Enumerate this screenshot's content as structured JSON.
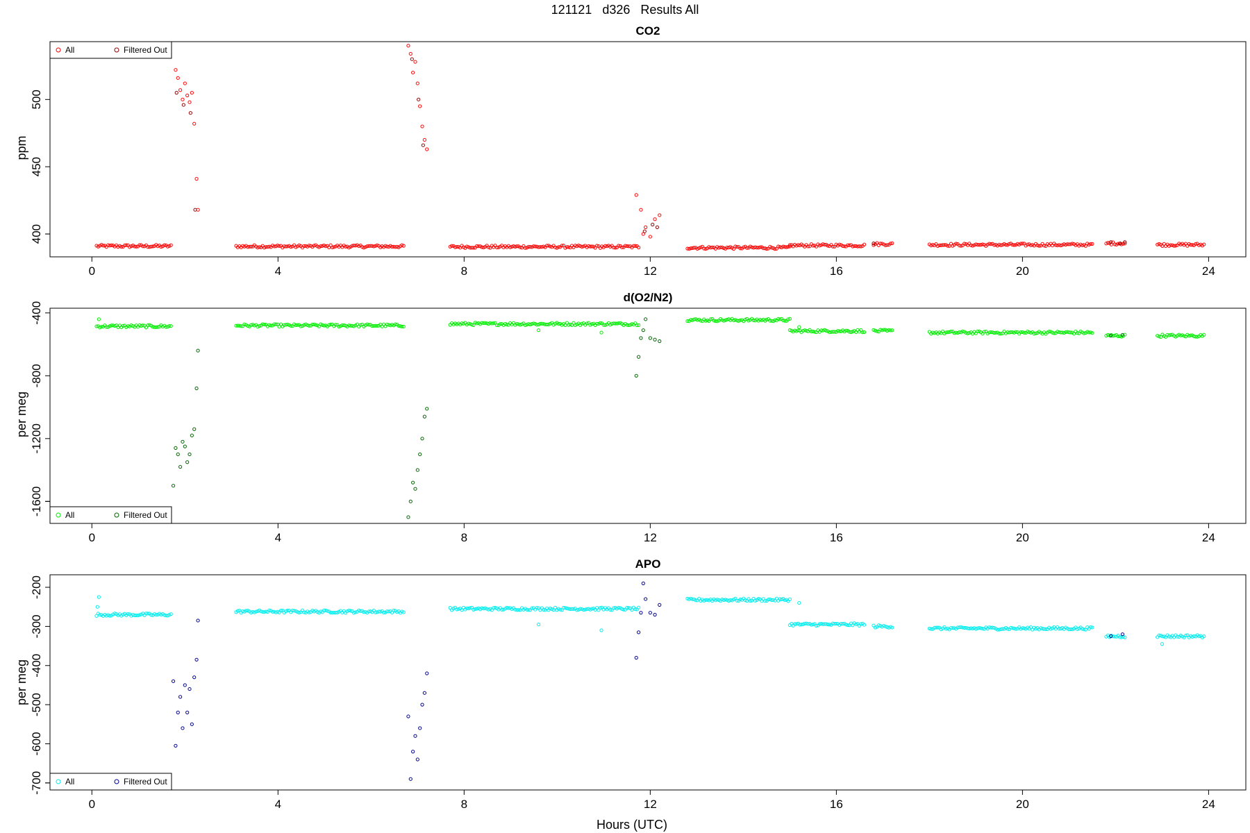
{
  "main_title": "121121   d326   Results All",
  "xlabel": "Hours (UTC)",
  "chart_data": [
    {
      "type": "scatter",
      "title": "CO2",
      "ylabel": "ppm",
      "xlim": [
        -0.9,
        24.8
      ],
      "ylim": [
        383,
        543
      ],
      "xticks": [
        0,
        4,
        8,
        12,
        16,
        20,
        24
      ],
      "yticks": [
        400,
        450,
        500
      ],
      "legend_position": "top-left",
      "series": [
        {
          "name": "All",
          "color": "#ff0000",
          "baseline_segments": [
            {
              "x_start": 0.1,
              "x_end": 1.7,
              "y": 391.0
            },
            {
              "x_start": 3.1,
              "x_end": 6.7,
              "y": 390.8
            },
            {
              "x_start": 7.7,
              "x_end": 11.75,
              "y": 390.5
            },
            {
              "x_start": 12.8,
              "x_end": 15.0,
              "y": 389.8
            },
            {
              "x_start": 15.0,
              "x_end": 16.6,
              "y": 391.5
            },
            {
              "x_start": 16.8,
              "x_end": 17.2,
              "y": 392.5
            },
            {
              "x_start": 18.0,
              "x_end": 21.5,
              "y": 392.0
            },
            {
              "x_start": 21.8,
              "x_end": 22.2,
              "y": 393.0
            },
            {
              "x_start": 22.9,
              "x_end": 23.9,
              "y": 392.0
            }
          ],
          "points": [
            [
              1.8,
              522
            ],
            [
              1.85,
              516
            ],
            [
              1.9,
              507
            ],
            [
              1.95,
              500
            ],
            [
              2.0,
              512
            ],
            [
              2.05,
              503
            ],
            [
              2.1,
              498
            ],
            [
              2.15,
              505
            ],
            [
              2.2,
              482
            ],
            [
              2.25,
              441
            ],
            [
              2.28,
              418
            ],
            [
              6.8,
              540
            ],
            [
              6.85,
              534
            ],
            [
              6.9,
              520
            ],
            [
              6.95,
              528
            ],
            [
              7.0,
              512
            ],
            [
              7.05,
              495
            ],
            [
              7.1,
              480
            ],
            [
              7.15,
              470
            ],
            [
              7.2,
              463
            ],
            [
              11.7,
              429
            ],
            [
              11.8,
              418
            ],
            [
              11.85,
              400
            ],
            [
              11.9,
              405
            ],
            [
              12.0,
              398
            ],
            [
              12.1,
              411
            ],
            [
              12.2,
              414
            ]
          ]
        },
        {
          "name": "Filtered Out",
          "color": "#8b0000",
          "points": [
            [
              1.82,
              505
            ],
            [
              1.97,
              496
            ],
            [
              2.12,
              490
            ],
            [
              2.22,
              418
            ],
            [
              6.88,
              530
            ],
            [
              7.02,
              500
            ],
            [
              7.12,
              466
            ],
            [
              11.88,
              402
            ],
            [
              12.05,
              407
            ],
            [
              12.15,
              405
            ],
            [
              16.8,
              393
            ],
            [
              21.9,
              394
            ],
            [
              22.1,
              393
            ],
            [
              22.2,
              394
            ]
          ]
        }
      ]
    },
    {
      "type": "scatter",
      "title": "d(O2/N2)",
      "ylabel": "per meg",
      "xlim": [
        -0.9,
        24.8
      ],
      "ylim": [
        -1740,
        -370
      ],
      "xticks": [
        0,
        4,
        8,
        12,
        16,
        20,
        24
      ],
      "yticks": [
        -1600,
        -1200,
        -800,
        -400
      ],
      "legend_position": "bottom-left",
      "series": [
        {
          "name": "All",
          "color": "#00ee00",
          "baseline_segments": [
            {
              "x_start": 0.1,
              "x_end": 1.7,
              "y": -485
            },
            {
              "x_start": 3.1,
              "x_end": 6.7,
              "y": -480
            },
            {
              "x_start": 7.7,
              "x_end": 11.75,
              "y": -470
            },
            {
              "x_start": 12.8,
              "x_end": 15.0,
              "y": -445
            },
            {
              "x_start": 15.0,
              "x_end": 16.6,
              "y": -515
            },
            {
              "x_start": 16.8,
              "x_end": 17.2,
              "y": -515
            },
            {
              "x_start": 18.0,
              "x_end": 21.5,
              "y": -525
            },
            {
              "x_start": 21.8,
              "x_end": 22.2,
              "y": -545
            },
            {
              "x_start": 22.9,
              "x_end": 23.9,
              "y": -545
            }
          ],
          "points": [
            [
              0.15,
              -440
            ],
            [
              10.95,
              -525
            ],
            [
              9.6,
              -510
            ],
            [
              15.2,
              -490
            ]
          ]
        },
        {
          "name": "Filtered Out",
          "color": "#006400",
          "points": [
            [
              1.75,
              -1500
            ],
            [
              1.8,
              -1260
            ],
            [
              1.85,
              -1300
            ],
            [
              1.9,
              -1380
            ],
            [
              1.95,
              -1220
            ],
            [
              2.0,
              -1250
            ],
            [
              2.05,
              -1350
            ],
            [
              2.1,
              -1300
            ],
            [
              2.15,
              -1180
            ],
            [
              2.2,
              -1140
            ],
            [
              2.25,
              -880
            ],
            [
              2.28,
              -640
            ],
            [
              6.8,
              -1700
            ],
            [
              6.85,
              -1600
            ],
            [
              6.9,
              -1480
            ],
            [
              6.95,
              -1520
            ],
            [
              7.0,
              -1400
            ],
            [
              7.05,
              -1300
            ],
            [
              7.1,
              -1200
            ],
            [
              7.15,
              -1060
            ],
            [
              7.2,
              -1010
            ],
            [
              11.7,
              -800
            ],
            [
              11.75,
              -680
            ],
            [
              11.8,
              -560
            ],
            [
              11.85,
              -510
            ],
            [
              11.9,
              -440
            ],
            [
              12.0,
              -560
            ],
            [
              12.1,
              -570
            ],
            [
              12.2,
              -580
            ],
            [
              21.9,
              -545
            ],
            [
              22.15,
              -540
            ]
          ]
        }
      ]
    },
    {
      "type": "scatter",
      "title": "APO",
      "ylabel": "per meg",
      "xlim": [
        -0.9,
        24.8
      ],
      "ylim": [
        -718,
        -168
      ],
      "xticks": [
        0,
        4,
        8,
        12,
        16,
        20,
        24
      ],
      "yticks": [
        -700,
        -600,
        -500,
        -400,
        -300,
        -200
      ],
      "legend_position": "bottom-left",
      "series": [
        {
          "name": "All",
          "color": "#00eeee",
          "baseline_segments": [
            {
              "x_start": 0.1,
              "x_end": 1.7,
              "y": -270
            },
            {
              "x_start": 3.1,
              "x_end": 6.7,
              "y": -262
            },
            {
              "x_start": 7.7,
              "x_end": 11.75,
              "y": -255
            },
            {
              "x_start": 12.8,
              "x_end": 15.0,
              "y": -232
            },
            {
              "x_start": 15.0,
              "x_end": 16.6,
              "y": -295
            },
            {
              "x_start": 16.8,
              "x_end": 17.2,
              "y": -300
            },
            {
              "x_start": 18.0,
              "x_end": 21.5,
              "y": -305
            },
            {
              "x_start": 21.8,
              "x_end": 22.2,
              "y": -325
            },
            {
              "x_start": 22.9,
              "x_end": 23.9,
              "y": -325
            }
          ],
          "points": [
            [
              0.15,
              -225
            ],
            [
              0.12,
              -250
            ],
            [
              10.95,
              -310
            ],
            [
              9.6,
              -295
            ],
            [
              15.2,
              -240
            ],
            [
              23.0,
              -345
            ]
          ]
        },
        {
          "name": "Filtered Out",
          "color": "#00008b",
          "points": [
            [
              1.75,
              -440
            ],
            [
              1.8,
              -605
            ],
            [
              1.85,
              -520
            ],
            [
              1.9,
              -480
            ],
            [
              1.95,
              -560
            ],
            [
              2.0,
              -450
            ],
            [
              2.05,
              -520
            ],
            [
              2.1,
              -460
            ],
            [
              2.15,
              -550
            ],
            [
              2.2,
              -430
            ],
            [
              2.25,
              -385
            ],
            [
              2.28,
              -285
            ],
            [
              6.8,
              -530
            ],
            [
              6.85,
              -690
            ],
            [
              6.9,
              -620
            ],
            [
              6.95,
              -580
            ],
            [
              7.0,
              -640
            ],
            [
              7.05,
              -560
            ],
            [
              7.1,
              -500
            ],
            [
              7.15,
              -470
            ],
            [
              7.2,
              -420
            ],
            [
              11.7,
              -380
            ],
            [
              11.75,
              -315
            ],
            [
              11.8,
              -265
            ],
            [
              11.85,
              -190
            ],
            [
              11.9,
              -230
            ],
            [
              12.0,
              -265
            ],
            [
              12.1,
              -270
            ],
            [
              12.2,
              -245
            ],
            [
              21.9,
              -325
            ],
            [
              22.15,
              -320
            ]
          ]
        }
      ]
    }
  ]
}
